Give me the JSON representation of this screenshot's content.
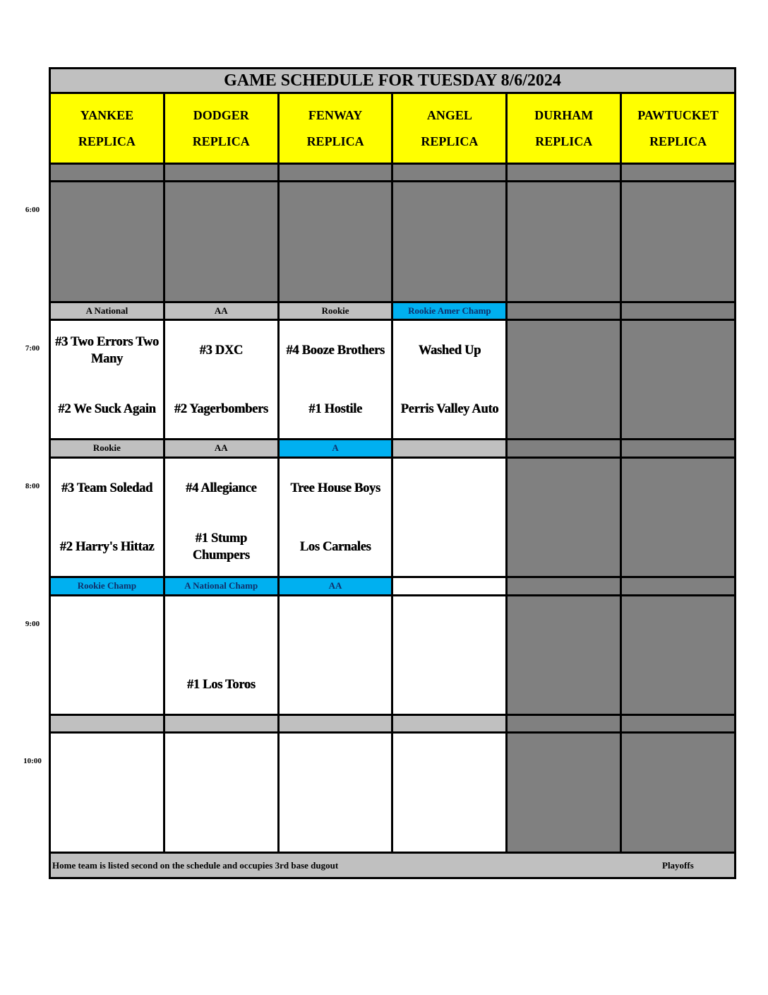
{
  "title": "GAME SCHEDULE FOR TUESDAY 8/6/2024",
  "fields": [
    {
      "name": "YANKEE",
      "sub": "REPLICA"
    },
    {
      "name": "DODGER",
      "sub": "REPLICA"
    },
    {
      "name": "FENWAY",
      "sub": "REPLICA"
    },
    {
      "name": "ANGEL",
      "sub": "REPLICA"
    },
    {
      "name": "DURHAM",
      "sub": "REPLICA"
    },
    {
      "name": "PAWTUCKET",
      "sub": "REPLICA"
    }
  ],
  "colors": {
    "gray": "#c0c0c0",
    "blue": "#00b0f0",
    "yellow": "#ffff00",
    "dark": "#808080",
    "white": "#ffffff"
  },
  "slots": [
    {
      "time": "6:00",
      "labels": [
        {
          "text": "",
          "color": "dark"
        },
        {
          "text": "",
          "color": "dark"
        },
        {
          "text": "",
          "color": "dark"
        },
        {
          "text": "",
          "color": "dark"
        },
        {
          "text": "",
          "color": "dark"
        },
        {
          "text": "",
          "color": "dark"
        }
      ],
      "games": [
        {
          "top": "",
          "bottom": "",
          "color": "dark"
        },
        {
          "top": "",
          "bottom": "",
          "color": "dark"
        },
        {
          "top": "",
          "bottom": "",
          "color": "dark"
        },
        {
          "top": "",
          "bottom": "",
          "color": "dark"
        },
        {
          "top": "",
          "bottom": "",
          "color": "dark"
        },
        {
          "top": "",
          "bottom": "",
          "color": "dark"
        }
      ]
    },
    {
      "time": "7:00",
      "labels": [
        {
          "text": "A National",
          "color": "gray"
        },
        {
          "text": "AA",
          "color": "gray"
        },
        {
          "text": "Rookie",
          "color": "gray"
        },
        {
          "text": "Rookie Amer Champ",
          "color": "blue"
        },
        {
          "text": "",
          "color": "dark"
        },
        {
          "text": "",
          "color": "dark"
        }
      ],
      "games": [
        {
          "top": "#3 Two Errors Two Many",
          "bottom": "#2 We Suck Again",
          "color": "white"
        },
        {
          "top": "#3 DXC",
          "bottom": "#2 Yagerbombers",
          "color": "white"
        },
        {
          "top": "#4 Booze Brothers",
          "bottom": "#1 Hostile",
          "color": "white"
        },
        {
          "top": "Washed Up",
          "bottom": "Perris Valley Auto",
          "color": "white"
        },
        {
          "top": "",
          "bottom": "",
          "color": "dark"
        },
        {
          "top": "",
          "bottom": "",
          "color": "dark"
        }
      ]
    },
    {
      "time": "8:00",
      "labels": [
        {
          "text": "Rookie",
          "color": "gray"
        },
        {
          "text": "AA",
          "color": "gray"
        },
        {
          "text": "A",
          "color": "blue"
        },
        {
          "text": "",
          "color": "gray"
        },
        {
          "text": "",
          "color": "dark"
        },
        {
          "text": "",
          "color": "dark"
        }
      ],
      "games": [
        {
          "top": "#3 Team Soledad",
          "bottom": "#2 Harry's Hittaz",
          "color": "white"
        },
        {
          "top": "#4 Allegiance",
          "bottom": "#1 Stump Chumpers",
          "color": "white"
        },
        {
          "top": "Tree House Boys",
          "bottom": "Los Carnales",
          "color": "white"
        },
        {
          "top": "",
          "bottom": "",
          "color": "white"
        },
        {
          "top": "",
          "bottom": "",
          "color": "dark"
        },
        {
          "top": "",
          "bottom": "",
          "color": "dark"
        }
      ]
    },
    {
      "time": "9:00",
      "labels": [
        {
          "text": "Rookie Champ",
          "color": "blue"
        },
        {
          "text": "A National Champ",
          "color": "blue"
        },
        {
          "text": "AA",
          "color": "blue"
        },
        {
          "text": "",
          "color": "white"
        },
        {
          "text": "",
          "color": "dark"
        },
        {
          "text": "",
          "color": "dark"
        }
      ],
      "games": [
        {
          "top": "",
          "bottom": "",
          "color": "white"
        },
        {
          "top": "",
          "bottom": "#1 Los Toros",
          "color": "white"
        },
        {
          "top": "",
          "bottom": "",
          "color": "white"
        },
        {
          "top": "",
          "bottom": "",
          "color": "white"
        },
        {
          "top": "",
          "bottom": "",
          "color": "dark"
        },
        {
          "top": "",
          "bottom": "",
          "color": "dark"
        }
      ]
    },
    {
      "time": "10:00",
      "labels": [
        {
          "text": "",
          "color": "gray"
        },
        {
          "text": "",
          "color": "gray"
        },
        {
          "text": "",
          "color": "gray"
        },
        {
          "text": "",
          "color": "gray"
        },
        {
          "text": "",
          "color": "dark"
        },
        {
          "text": "",
          "color": "dark"
        }
      ],
      "games": [
        {
          "top": "",
          "bottom": "",
          "color": "white"
        },
        {
          "top": "",
          "bottom": "",
          "color": "white"
        },
        {
          "top": "",
          "bottom": "",
          "color": "white"
        },
        {
          "top": "",
          "bottom": "",
          "color": "white"
        },
        {
          "top": "",
          "bottom": "",
          "color": "dark"
        },
        {
          "top": "",
          "bottom": "",
          "color": "dark"
        }
      ]
    }
  ],
  "footer": {
    "note": "Home team is listed second on the schedule and occupies 3rd base dugout",
    "legend": "Playoffs"
  }
}
